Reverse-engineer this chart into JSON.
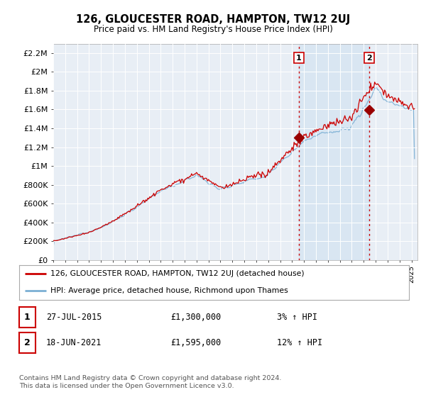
{
  "title": "126, GLOUCESTER ROAD, HAMPTON, TW12 2UJ",
  "subtitle": "Price paid vs. HM Land Registry's House Price Index (HPI)",
  "ylabel_ticks": [
    "£0",
    "£200K",
    "£400K",
    "£600K",
    "£800K",
    "£1M",
    "£1.2M",
    "£1.4M",
    "£1.6M",
    "£1.8M",
    "£2M",
    "£2.2M"
  ],
  "ytick_values": [
    0,
    200000,
    400000,
    600000,
    800000,
    1000000,
    1200000,
    1400000,
    1600000,
    1800000,
    2000000,
    2200000
  ],
  "ylim": [
    0,
    2300000
  ],
  "xlim_start": 1995.0,
  "xlim_end": 2025.5,
  "hpi_color": "#7bafd4",
  "price_color": "#cc0000",
  "marker_color": "#990000",
  "vline_color": "#cc0000",
  "vline_style": ":",
  "fill_color": "#cce0f0",
  "fill_alpha": 0.5,
  "sale1_x": 2015.57,
  "sale1_y": 1300000,
  "sale1_label": "1",
  "sale2_x": 2021.46,
  "sale2_y": 1595000,
  "sale2_label": "2",
  "legend_line1": "126, GLOUCESTER ROAD, HAMPTON, TW12 2UJ (detached house)",
  "legend_line2": "HPI: Average price, detached house, Richmond upon Thames",
  "table_row1_num": "1",
  "table_row1_date": "27-JUL-2015",
  "table_row1_price": "£1,300,000",
  "table_row1_hpi": "3% ↑ HPI",
  "table_row2_num": "2",
  "table_row2_date": "18-JUN-2021",
  "table_row2_price": "£1,595,000",
  "table_row2_hpi": "12% ↑ HPI",
  "footnote": "Contains HM Land Registry data © Crown copyright and database right 2024.\nThis data is licensed under the Open Government Licence v3.0.",
  "background_color": "#ffffff",
  "plot_bg_color": "#e8eef5",
  "grid_color": "#ffffff"
}
